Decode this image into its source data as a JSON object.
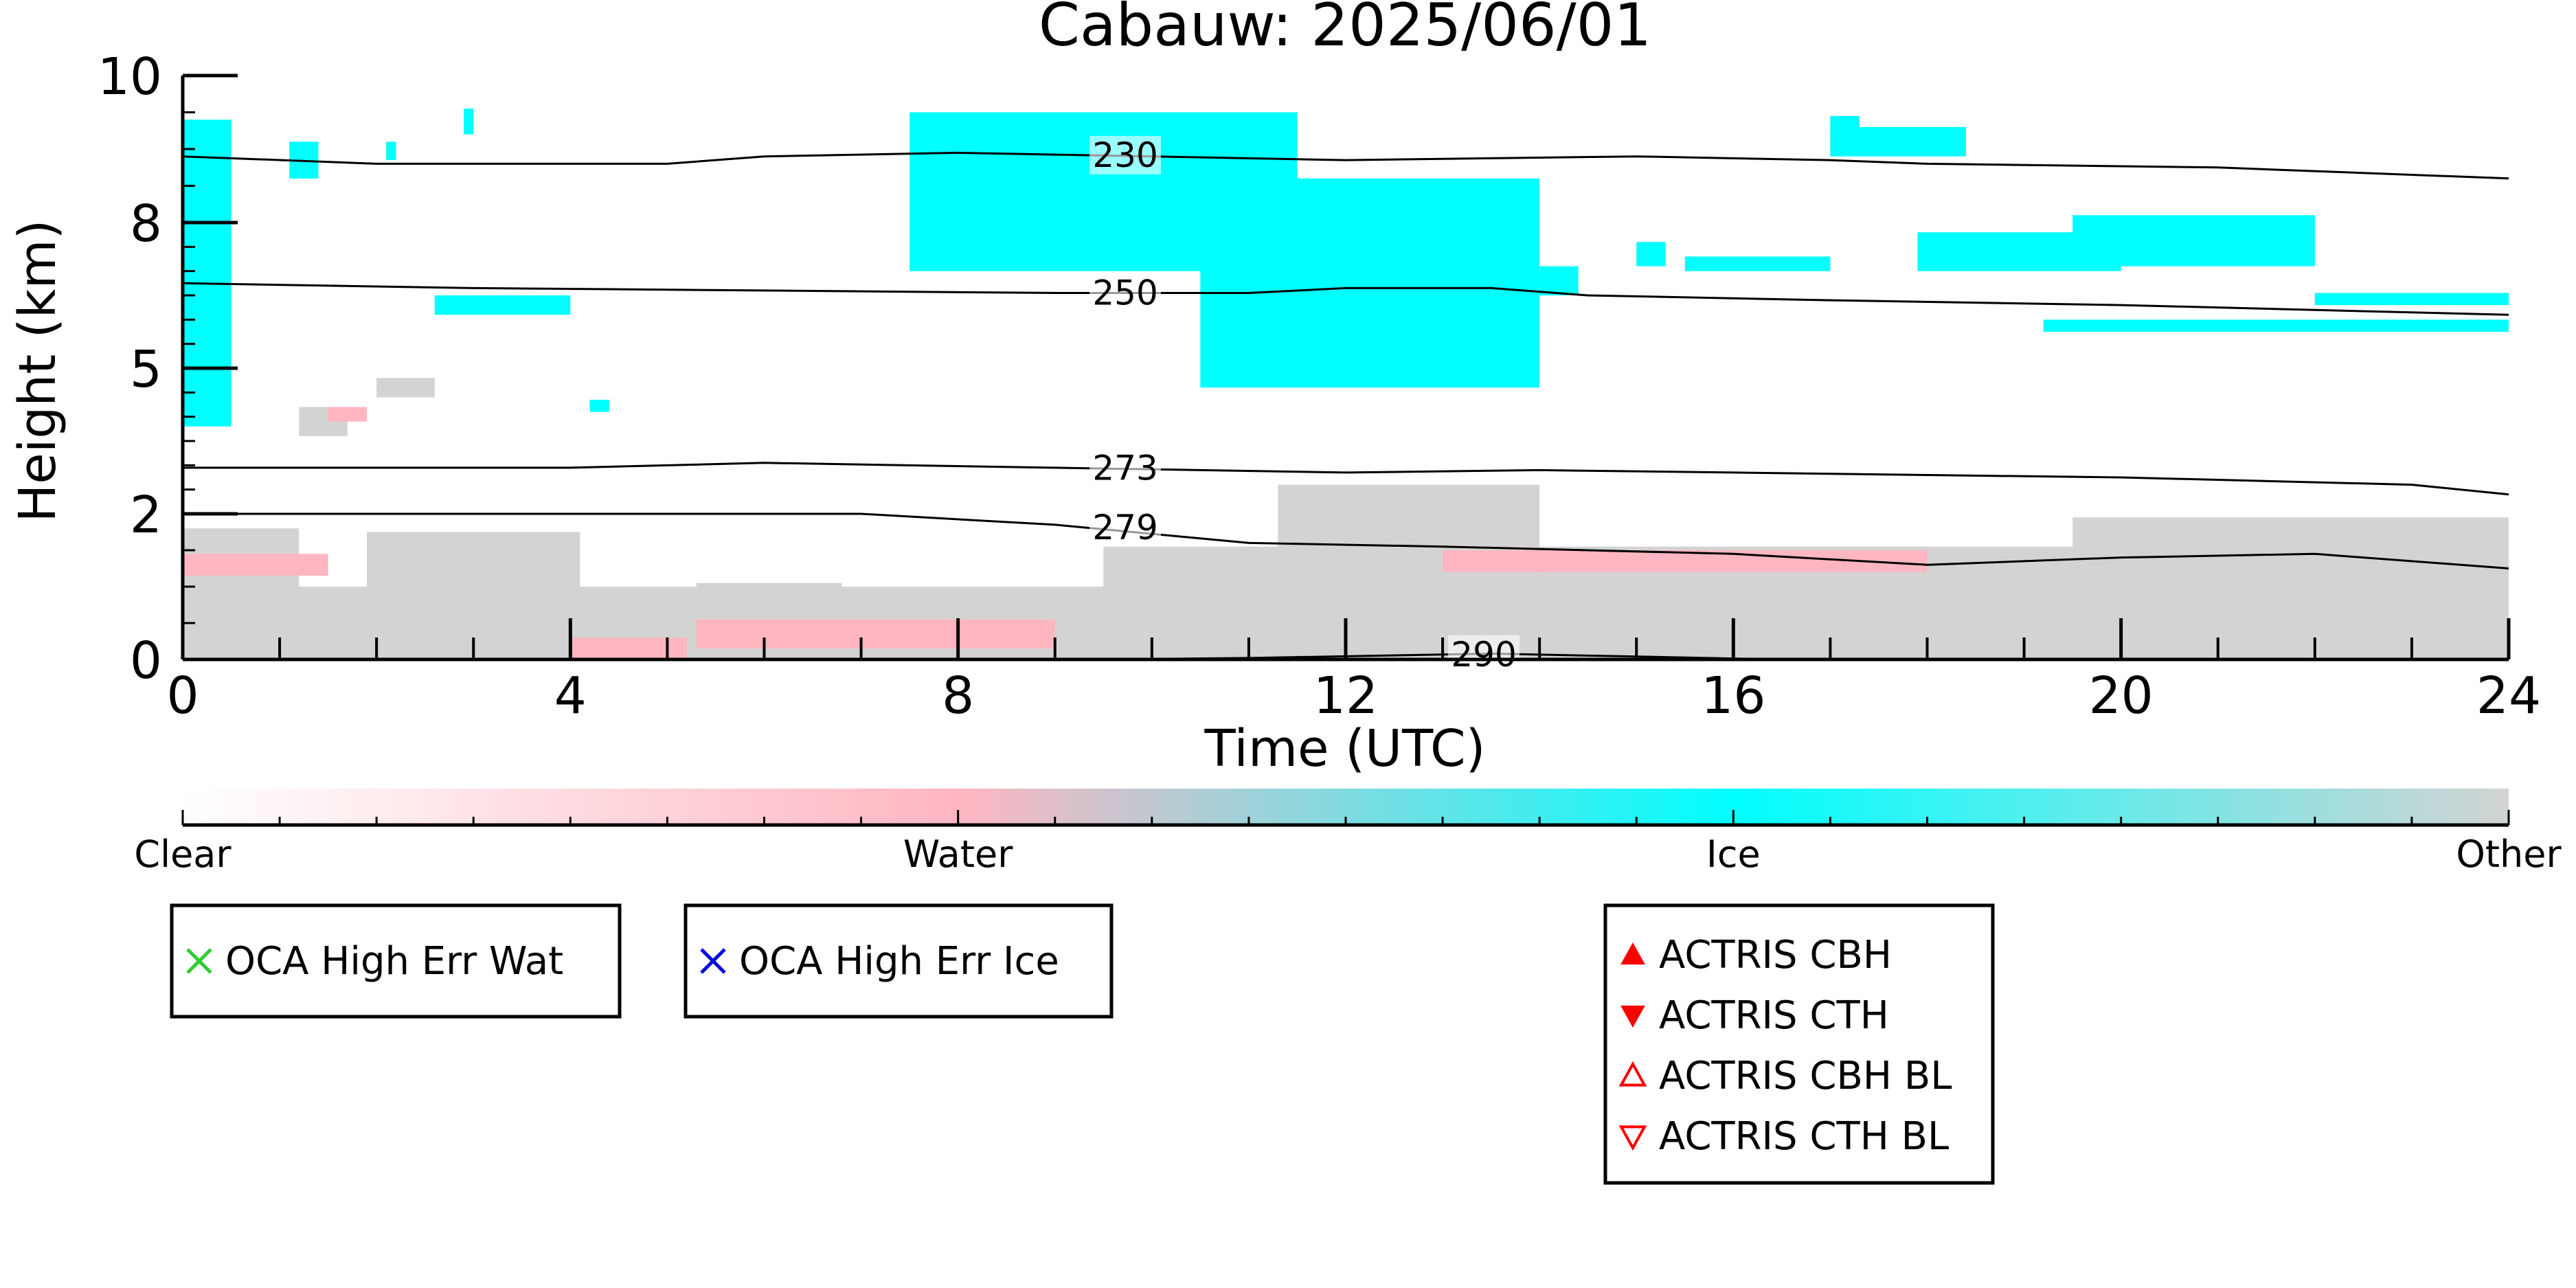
{
  "chart_data": {
    "type": "heatmap",
    "title": "Cabauw: 2025/06/01",
    "xlabel": "Time (UTC)",
    "ylabel": "Height (km)",
    "xlim": [
      0,
      24
    ],
    "ylim": [
      0,
      10
    ],
    "y_scale": "piecewise (stretched near ground)",
    "x_ticks": [
      0,
      4,
      8,
      12,
      16,
      20,
      24
    ],
    "x_tick_labels": [
      "0",
      "4",
      "8",
      "12",
      "16",
      "20",
      "24"
    ],
    "y_ticks": [
      0,
      2,
      5,
      8,
      10
    ],
    "y_tick_labels": [
      "0",
      "2",
      "5",
      "8",
      "10"
    ],
    "grid": false,
    "colorbar": {
      "labels": [
        "Clear",
        "Water",
        "Ice",
        "Other"
      ],
      "colors": [
        "#ffffff",
        "#ffb6c1",
        "#00ffff",
        "#d3d3d3"
      ]
    },
    "temperature_contours": [
      {
        "label": "230",
        "points": [
          [
            0,
            8.9
          ],
          [
            2,
            8.8
          ],
          [
            5,
            8.8
          ],
          [
            6,
            8.9
          ],
          [
            8,
            8.95
          ],
          [
            12,
            8.85
          ],
          [
            15,
            8.9
          ],
          [
            17,
            8.85
          ],
          [
            18,
            8.8
          ],
          [
            21,
            8.75
          ],
          [
            24,
            8.6
          ]
        ]
      },
      {
        "label": "250",
        "points": [
          [
            0,
            6.75
          ],
          [
            3,
            6.65
          ],
          [
            6,
            6.6
          ],
          [
            9,
            6.55
          ],
          [
            11,
            6.55
          ],
          [
            12,
            6.65
          ],
          [
            13.5,
            6.65
          ],
          [
            14.5,
            6.5
          ],
          [
            17,
            6.4
          ],
          [
            20,
            6.3
          ],
          [
            24,
            6.1
          ]
        ]
      },
      {
        "label": "273",
        "points": [
          [
            0,
            2.95
          ],
          [
            4,
            2.95
          ],
          [
            6,
            3.05
          ],
          [
            9,
            2.95
          ],
          [
            12,
            2.85
          ],
          [
            14,
            2.9
          ],
          [
            16,
            2.85
          ],
          [
            18,
            2.8
          ],
          [
            20,
            2.75
          ],
          [
            23,
            2.6
          ],
          [
            24,
            2.4
          ]
        ]
      },
      {
        "label": "279",
        "points": [
          [
            0,
            2.0
          ],
          [
            3,
            2.0
          ],
          [
            7,
            2.0
          ],
          [
            9,
            1.85
          ],
          [
            11,
            1.6
          ],
          [
            13,
            1.55
          ],
          [
            16,
            1.45
          ],
          [
            18,
            1.3
          ],
          [
            20,
            1.4
          ],
          [
            22,
            1.45
          ],
          [
            24,
            1.25
          ]
        ]
      },
      {
        "label": "290",
        "points": [
          [
            9.5,
            0.0
          ],
          [
            11,
            0.02
          ],
          [
            13.5,
            0.08
          ],
          [
            15,
            0.04
          ],
          [
            16.5,
            0.0
          ]
        ]
      }
    ],
    "regions": [
      {
        "class": "Other",
        "t0": 0,
        "t1": 24,
        "h0": 0,
        "h1": 1.0
      },
      {
        "class": "Other",
        "t0": 0,
        "t1": 1.2,
        "h0": 0,
        "h1": 1.8
      },
      {
        "class": "Other",
        "t0": 1.9,
        "t1": 4.1,
        "h0": 0,
        "h1": 1.75
      },
      {
        "class": "Other",
        "t0": 5.3,
        "t1": 6.8,
        "h0": 0.2,
        "h1": 1.05
      },
      {
        "class": "Other",
        "t0": 9.5,
        "t1": 24,
        "h0": 0,
        "h1": 1.55
      },
      {
        "class": "Other",
        "t0": 11.3,
        "t1": 14,
        "h0": 0.7,
        "h1": 2.6
      },
      {
        "class": "Other",
        "t0": 19.5,
        "t1": 24,
        "h0": 1.0,
        "h1": 1.95
      },
      {
        "class": "Other",
        "t0": 1.2,
        "t1": 1.7,
        "h0": 3.6,
        "h1": 4.2
      },
      {
        "class": "Other",
        "t0": 2.0,
        "t1": 2.6,
        "h0": 4.4,
        "h1": 4.8
      },
      {
        "class": "Water",
        "t0": 4.0,
        "t1": 5.2,
        "h0": 0.0,
        "h1": 0.3
      },
      {
        "class": "Water",
        "t0": 5.3,
        "t1": 9.0,
        "h0": 0.15,
        "h1": 0.55
      },
      {
        "class": "Water",
        "t0": 0.0,
        "t1": 1.5,
        "h0": 1.15,
        "h1": 1.45
      },
      {
        "class": "Water",
        "t0": 13.0,
        "t1": 18.0,
        "h0": 1.2,
        "h1": 1.5
      },
      {
        "class": "Water",
        "t0": 1.5,
        "t1": 1.9,
        "h0": 3.9,
        "h1": 4.2
      },
      {
        "class": "Ice",
        "t0": 0.0,
        "t1": 0.5,
        "h0": 3.8,
        "h1": 9.4
      },
      {
        "class": "Ice",
        "t0": 1.1,
        "t1": 1.4,
        "h0": 8.6,
        "h1": 9.1
      },
      {
        "class": "Ice",
        "t0": 2.1,
        "t1": 2.2,
        "h0": 8.85,
        "h1": 9.1
      },
      {
        "class": "Ice",
        "t0": 2.9,
        "t1": 3.0,
        "h0": 9.2,
        "h1": 9.55
      },
      {
        "class": "Ice",
        "t0": 2.6,
        "t1": 4.0,
        "h0": 6.1,
        "h1": 6.5
      },
      {
        "class": "Ice",
        "t0": 4.2,
        "t1": 4.4,
        "h0": 4.1,
        "h1": 4.35
      },
      {
        "class": "Ice",
        "t0": 7.5,
        "t1": 11.5,
        "h0": 7.0,
        "h1": 9.5
      },
      {
        "class": "Ice",
        "t0": 10.5,
        "t1": 14.0,
        "h0": 4.6,
        "h1": 8.6
      },
      {
        "class": "Ice",
        "t0": 14.0,
        "t1": 14.4,
        "h0": 6.5,
        "h1": 7.1
      },
      {
        "class": "Ice",
        "t0": 15.0,
        "t1": 15.3,
        "h0": 7.1,
        "h1": 7.6
      },
      {
        "class": "Ice",
        "t0": 17.0,
        "t1": 17.3,
        "h0": 9.2,
        "h1": 9.45
      },
      {
        "class": "Ice",
        "t0": 15.5,
        "t1": 17.0,
        "h0": 7.0,
        "h1": 7.3
      },
      {
        "class": "Ice",
        "t0": 17.0,
        "t1": 18.4,
        "h0": 8.9,
        "h1": 9.3
      },
      {
        "class": "Ice",
        "t0": 17.9,
        "t1": 20.0,
        "h0": 7.0,
        "h1": 7.8
      },
      {
        "class": "Ice",
        "t0": 19.5,
        "t1": 22.0,
        "h0": 7.1,
        "h1": 8.1
      },
      {
        "class": "Ice",
        "t0": 19.2,
        "t1": 24.0,
        "h0": 5.75,
        "h1": 6.0
      },
      {
        "class": "Ice",
        "t0": 22.0,
        "t1": 24.0,
        "h0": 6.3,
        "h1": 6.55
      }
    ]
  },
  "legends": [
    {
      "items": [
        {
          "marker": "x",
          "color": "#2ecc2e",
          "label": "OCA High Err Wat"
        }
      ]
    },
    {
      "items": [
        {
          "marker": "x",
          "color": "#0000dd",
          "label": "OCA High Err Ice"
        }
      ]
    },
    {
      "items": [
        {
          "marker": "triangle-up",
          "color": "#ff0000",
          "label": "ACTRIS CBH"
        },
        {
          "marker": "triangle-down",
          "color": "#ff0000",
          "label": "ACTRIS CTH"
        },
        {
          "marker": "triangle-up-open",
          "color": "#ff0000",
          "label": "ACTRIS CBH BL"
        },
        {
          "marker": "triangle-down-open",
          "color": "#ff0000",
          "label": "ACTRIS CTH BL"
        }
      ]
    }
  ]
}
